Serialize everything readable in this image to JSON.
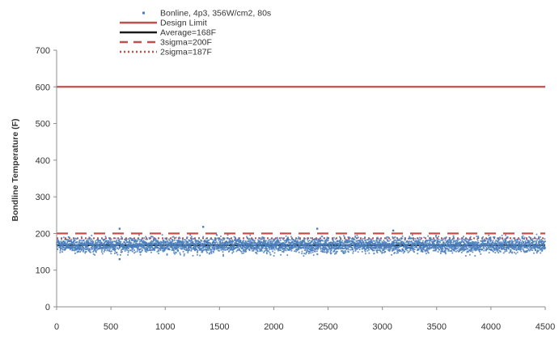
{
  "chart_data": {
    "type": "scatter",
    "title": "",
    "xlabel": "",
    "ylabel": "Bondline Temperature (F)",
    "xlim": [
      0,
      4500
    ],
    "ylim": [
      0,
      700
    ],
    "x_ticks": [
      "0",
      "500",
      "1000",
      "1500",
      "2000",
      "2500",
      "3000",
      "3500",
      "4000",
      "4500"
    ],
    "y_ticks": [
      "0",
      "100",
      "200",
      "300",
      "400",
      "500",
      "600",
      "700"
    ],
    "legend_position": "top-center",
    "grid": false,
    "series": [
      {
        "name": "Bonline, 4p3, 356W/cm2, 80s",
        "kind": "scatter",
        "color": "#4a7ebb",
        "n_points": 4500,
        "x_range": [
          0,
          4500
        ],
        "y_center": 168,
        "y_spread": 40,
        "outliers": [
          {
            "x": 580,
            "y": 130
          },
          {
            "x": 1350,
            "y": 218
          },
          {
            "x": 2400,
            "y": 213
          },
          {
            "x": 3100,
            "y": 208
          },
          {
            "x": 580,
            "y": 213
          }
        ]
      },
      {
        "name": "Design Limit",
        "kind": "hline",
        "y": 600,
        "color": "#c0504d",
        "dash": "solid"
      },
      {
        "name": "Average=168F",
        "kind": "hline",
        "y": 168,
        "color": "#1a1a1a",
        "dash": "solid"
      },
      {
        "name": "3sigma=200F",
        "kind": "hline",
        "y": 200,
        "color": "#c0504d",
        "dash": "long"
      },
      {
        "name": "2sigma=187F",
        "kind": "hline",
        "y": 187,
        "color": "#c0504d",
        "dash": "dot"
      }
    ]
  }
}
